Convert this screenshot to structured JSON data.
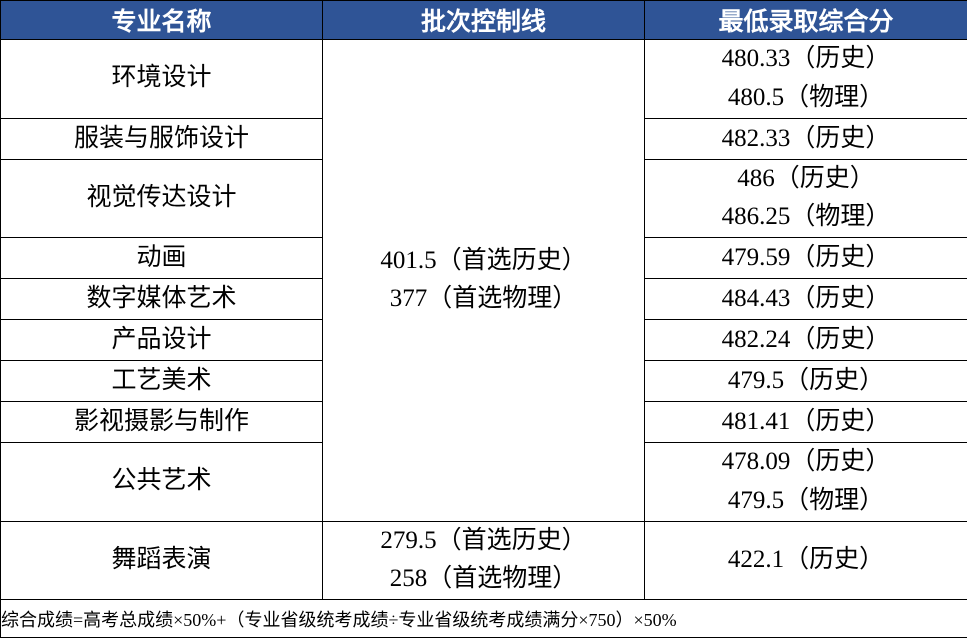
{
  "header_bg": "#2f5496",
  "header_fg": "#ffffff",
  "body_fg": "#000000",
  "border_color": "#000000",
  "font_family": "SimSun",
  "header_fontsize": 25,
  "body_fontsize": 25,
  "footer_fontsize": 18,
  "columns": {
    "col1": "专业名称",
    "col2": "批次控制线",
    "col3": "最低录取综合分"
  },
  "group1_control": {
    "line1": "401.5（首选历史）",
    "line2": "377（首选物理）"
  },
  "group1_majors": [
    {
      "name": "环境设计",
      "score_lines": [
        "480.33（历史）",
        "480.5（物理）"
      ]
    },
    {
      "name": "服装与服饰设计",
      "score_lines": [
        "482.33（历史）"
      ]
    },
    {
      "name": "视觉传达设计",
      "score_lines": [
        "486（历史）",
        "486.25（物理）"
      ]
    },
    {
      "name": "动画",
      "score_lines": [
        "479.59（历史）"
      ]
    },
    {
      "name": "数字媒体艺术",
      "score_lines": [
        "484.43（历史）"
      ]
    },
    {
      "name": "产品设计",
      "score_lines": [
        "482.24（历史）"
      ]
    },
    {
      "name": "工艺美术",
      "score_lines": [
        "479.5（历史）"
      ]
    },
    {
      "name": "影视摄影与制作",
      "score_lines": [
        "481.41（历史）"
      ]
    },
    {
      "name": "公共艺术",
      "score_lines": [
        "478.09（历史）",
        "479.5（物理）"
      ]
    }
  ],
  "group2": {
    "major": "舞蹈表演",
    "control_lines": [
      "279.5（首选历史）",
      "258（首选物理）"
    ],
    "score_lines": [
      "422.1（历史）"
    ]
  },
  "footer": "综合成绩=高考总成绩×50%+（专业省级统考成绩÷专业省级统考成绩满分×750）×50%"
}
